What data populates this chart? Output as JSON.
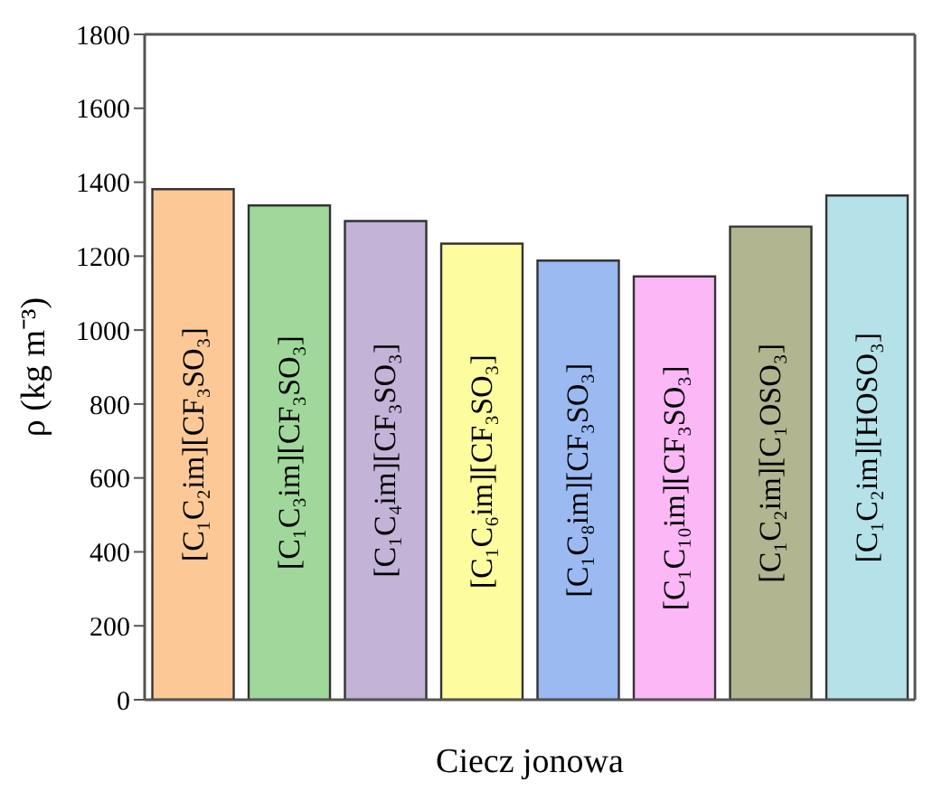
{
  "chart_data": {
    "type": "bar",
    "xlabel": "Ciecz jonowa",
    "ylabel": "ρ (kg m⁻³)",
    "categories": [
      "[C₁C₂im][CF₃SO₃]",
      "[C₁C₃im][CF₃SO₃]",
      "[C₁C₄im][CF₃SO₃]",
      "[C₁C₆im][CF₃SO₃]",
      "[C₁C₈im][CF₃SO₃]",
      "[C₁C₁₀im][CF₃SO₃]",
      "[C₁C₂im][C₁OSO₃]",
      "[C₁C₂im][HOSO₃]"
    ],
    "values": [
      1381,
      1337,
      1295,
      1234,
      1188,
      1145,
      1280,
      1364
    ],
    "colors": [
      "#fcc996",
      "#a0d89b",
      "#c3b3d7",
      "#fdfc9e",
      "#9bbaf2",
      "#fbb7f6",
      "#b1b590",
      "#b5e2e8"
    ],
    "ylim": [
      0,
      1800
    ],
    "yticks": [
      0,
      200,
      400,
      600,
      800,
      1000,
      1200,
      1400,
      1600,
      1800
    ],
    "grid": false,
    "legend": false
  }
}
